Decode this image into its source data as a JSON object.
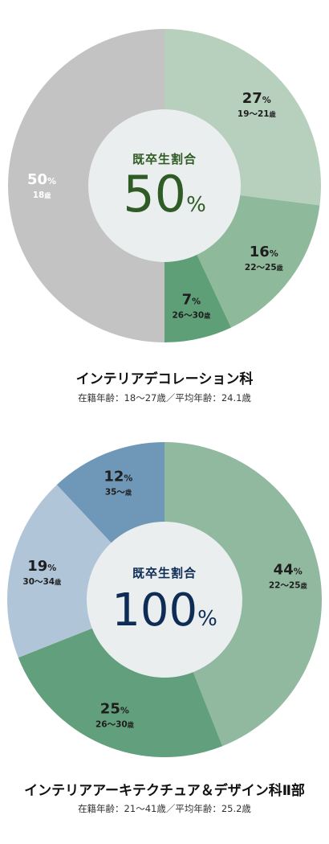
{
  "chart_data": [
    {
      "type": "pie",
      "center_label": "既卒生割合",
      "center_value": "50",
      "center_unit": "%",
      "center_color": "#2f5c24",
      "slices": [
        {
          "value": 27,
          "pct": "27",
          "age": "19〜21",
          "color": "#b7cfbd",
          "text_color": "#1e1e1e"
        },
        {
          "value": 16,
          "pct": "16",
          "age": "22〜25",
          "color": "#8fb99b",
          "text_color": "#1e1e1e"
        },
        {
          "value": 7,
          "pct": "7",
          "age": "26〜30",
          "color": "#5f9f78",
          "text_color": "#1e1e1e"
        },
        {
          "value": 50,
          "pct": "50",
          "age": "18",
          "color": "#c2c3c2",
          "text_color": "#ffffff"
        }
      ],
      "title": "インテリアデコレーション科",
      "subtitle": "在籍年齢：18〜27歳／平均年齢：24.1歳"
    },
    {
      "type": "pie",
      "center_label": "既卒生割合",
      "center_value": "100",
      "center_unit": "%",
      "center_color": "#0e2c55",
      "slices": [
        {
          "value": 44,
          "pct": "44",
          "age": "22〜25",
          "color": "#91b9a0",
          "text_color": "#1e1e1e"
        },
        {
          "value": 25,
          "pct": "25",
          "age": "26〜30",
          "color": "#629f7c",
          "text_color": "#1e1e1e"
        },
        {
          "value": 19,
          "pct": "19",
          "age": "30〜34",
          "color": "#b1c5d8",
          "text_color": "#1e1e1e"
        },
        {
          "value": 12,
          "pct": "12",
          "age": "35〜",
          "color": "#6f97b7",
          "text_color": "#1e1e1e"
        }
      ],
      "title": "インテリアアーキテクチュア＆デザイン科Ⅱ部",
      "subtitle": "在籍年齢：21〜41歳／平均年齢：25.2歳"
    }
  ],
  "units": {
    "percent": "%",
    "age": "歳"
  }
}
